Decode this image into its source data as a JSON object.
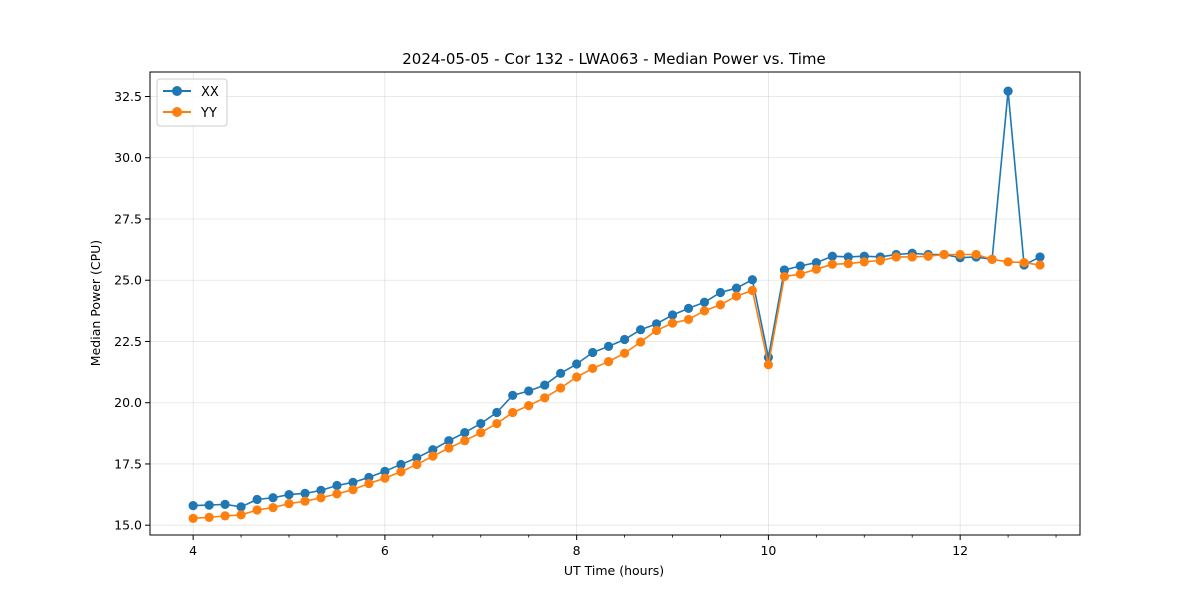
{
  "chart_data": {
    "type": "line",
    "title": "2024-05-05 - Cor 132 - LWA063 - Median Power vs. Time",
    "xlabel": "UT Time (hours)",
    "ylabel": "Median Power (CPU)",
    "xlim": [
      3.55,
      13.25
    ],
    "ylim": [
      14.6,
      33.5
    ],
    "xticks": [
      4,
      6,
      8,
      10,
      12
    ],
    "xtick_labels": [
      "4",
      "6",
      "8",
      "10",
      "12"
    ],
    "xminor_step": 0.5,
    "yticks": [
      15.0,
      17.5,
      20.0,
      22.5,
      25.0,
      27.5,
      30.0,
      32.5
    ],
    "ytick_labels": [
      "15.0",
      "17.5",
      "20.0",
      "22.5",
      "25.0",
      "27.5",
      "30.0",
      "32.5"
    ],
    "grid": true,
    "legend_position": "top-left",
    "x": [
      4.0,
      4.167,
      4.333,
      4.5,
      4.667,
      4.833,
      5.0,
      5.167,
      5.333,
      5.5,
      5.667,
      5.833,
      6.0,
      6.167,
      6.333,
      6.5,
      6.667,
      6.833,
      7.0,
      7.167,
      7.333,
      7.5,
      7.667,
      7.833,
      8.0,
      8.167,
      8.333,
      8.5,
      8.667,
      8.833,
      9.0,
      9.167,
      9.333,
      9.5,
      9.667,
      9.833,
      10.0,
      10.167,
      10.333,
      10.5,
      10.667,
      10.833,
      11.0,
      11.167,
      11.333,
      11.5,
      11.667,
      11.833,
      12.0,
      12.167,
      12.333,
      12.5,
      12.667,
      12.833
    ],
    "series": [
      {
        "name": "XX",
        "color": "#1f77b4",
        "values": [
          15.8,
          15.82,
          15.85,
          15.75,
          16.05,
          16.12,
          16.25,
          16.3,
          16.42,
          16.62,
          16.75,
          16.95,
          17.2,
          17.48,
          17.75,
          18.08,
          18.45,
          18.78,
          19.15,
          19.6,
          20.3,
          20.48,
          20.72,
          21.2,
          21.58,
          22.05,
          22.3,
          22.58,
          22.98,
          23.22,
          23.58,
          23.85,
          24.1,
          24.5,
          24.68,
          25.02,
          21.85,
          25.42,
          25.58,
          25.72,
          25.98,
          25.95,
          25.98,
          25.95,
          26.05,
          26.1,
          26.05,
          26.05,
          25.92,
          25.95,
          25.85,
          32.72,
          25.62,
          25.95
        ]
      },
      {
        "name": "YY",
        "color": "#ff7f0e",
        "values": [
          15.28,
          15.32,
          15.38,
          15.42,
          15.62,
          15.72,
          15.88,
          15.98,
          16.12,
          16.28,
          16.45,
          16.7,
          16.92,
          17.18,
          17.48,
          17.82,
          18.15,
          18.45,
          18.78,
          19.15,
          19.6,
          19.88,
          20.2,
          20.6,
          21.05,
          21.4,
          21.68,
          22.02,
          22.48,
          22.95,
          23.25,
          23.4,
          23.75,
          24.0,
          24.35,
          24.58,
          21.55,
          25.15,
          25.25,
          25.45,
          25.65,
          25.68,
          25.75,
          25.8,
          25.95,
          25.95,
          25.98,
          26.05,
          26.05,
          26.05,
          25.85,
          25.75,
          25.72,
          25.62
        ]
      }
    ]
  }
}
